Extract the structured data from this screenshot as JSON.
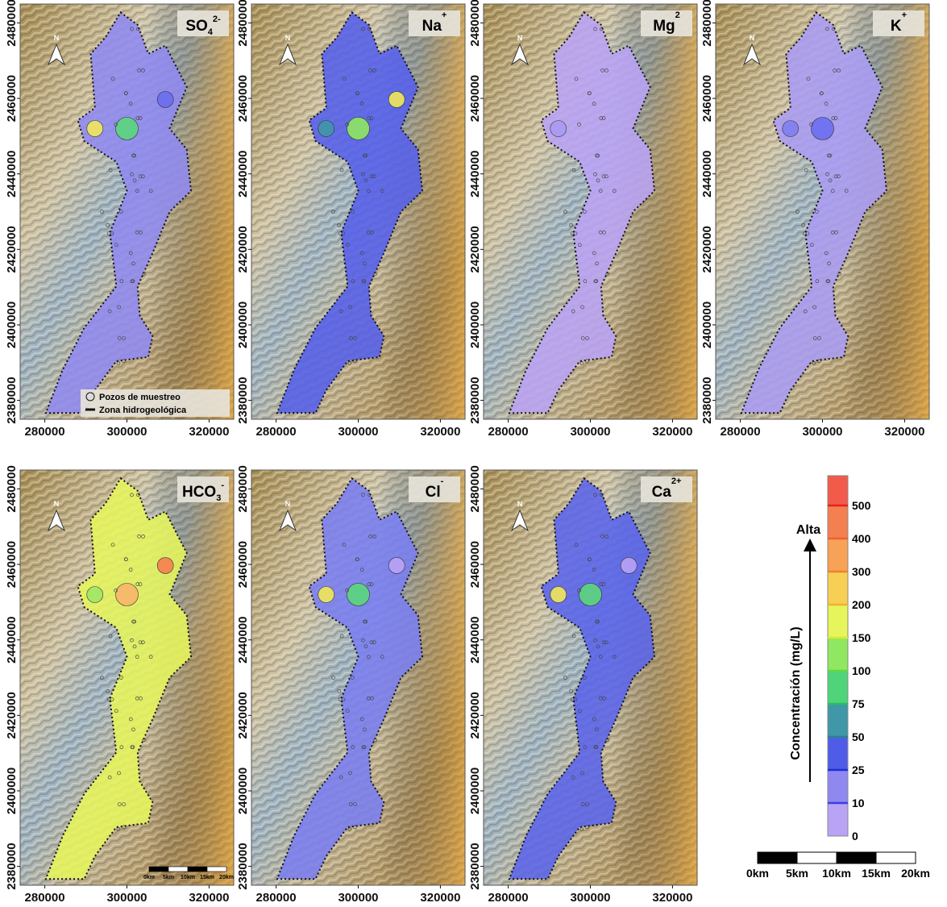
{
  "axes": {
    "xlim": [
      274000,
      326000
    ],
    "ylim": [
      2375000,
      2485000
    ],
    "xticks": [
      280000,
      300000,
      320000
    ],
    "yticks": [
      2380000,
      2400000,
      2420000,
      2440000,
      2460000,
      2480000
    ]
  },
  "north_label": "N",
  "panels": [
    {
      "label": {
        "main": "SO",
        "sub": "4",
        "sup": "2-"
      },
      "fill": "#8f8af0",
      "accents": [
        "#f2e85a",
        "#5bd67c",
        "#6a6ef0"
      ]
    },
    {
      "label": {
        "main": "Na",
        "sub": "",
        "sup": "+"
      },
      "fill": "#5560ea",
      "accents": [
        "#3f97a8",
        "#8fe860",
        "#f2e85a"
      ]
    },
    {
      "label": {
        "main": "Mg",
        "sub": "",
        "sup": "2"
      },
      "fill": "#b9a3f5",
      "accents": [
        "#a89af2"
      ]
    },
    {
      "label": {
        "main": "K",
        "sub": "",
        "sup": "+"
      },
      "fill": "#aa9cf3",
      "accents": [
        "#7f7ef0",
        "#6a6ef0"
      ]
    },
    {
      "label": {
        "main": "HCO",
        "sub": "3",
        "sup": "-"
      },
      "fill": "#e6f55c",
      "accents": [
        "#9fe566",
        "#f7b56a",
        "#f47f50"
      ]
    },
    {
      "label": {
        "main": "Cl",
        "sub": "",
        "sup": "-"
      },
      "fill": "#7a7ef0",
      "accents": [
        "#f2e85a",
        "#5bd67c",
        "#b9a3f5"
      ]
    },
    {
      "label": {
        "main": "Ca",
        "sub": "",
        "sup": "2+"
      },
      "fill": "#5a64eb",
      "accents": [
        "#f2e85a",
        "#5bd67c",
        "#b9a3f5"
      ]
    }
  ],
  "map_legend": {
    "wells": "Pozos de muestreo",
    "zone": "Zona hidrogeológica"
  },
  "colorbar": {
    "title": "Concentración (mg/L)",
    "arrow_label": "Alta",
    "levels": [
      0,
      10,
      25,
      50,
      75,
      100,
      150,
      200,
      300,
      400,
      500
    ],
    "colors": [
      "#b9a3f5",
      "#8f88f0",
      "#4f5ce8",
      "#3f97a8",
      "#4fd47a",
      "#8fe860",
      "#e6f55c",
      "#f7cf55",
      "#f7a257",
      "#f47f50",
      "#f25a4a"
    ],
    "line_colors": [
      "#7a4fe0",
      "#3a3ee0",
      "#1e2fd6",
      "#2f7f90",
      "#25c060",
      "#60d840",
      "#d8e830",
      "#f0b030",
      "#f08030",
      "#f06030",
      "#e82020"
    ]
  },
  "scale_bar": [
    "0km",
    "5km",
    "10km",
    "15km",
    "20km"
  ]
}
